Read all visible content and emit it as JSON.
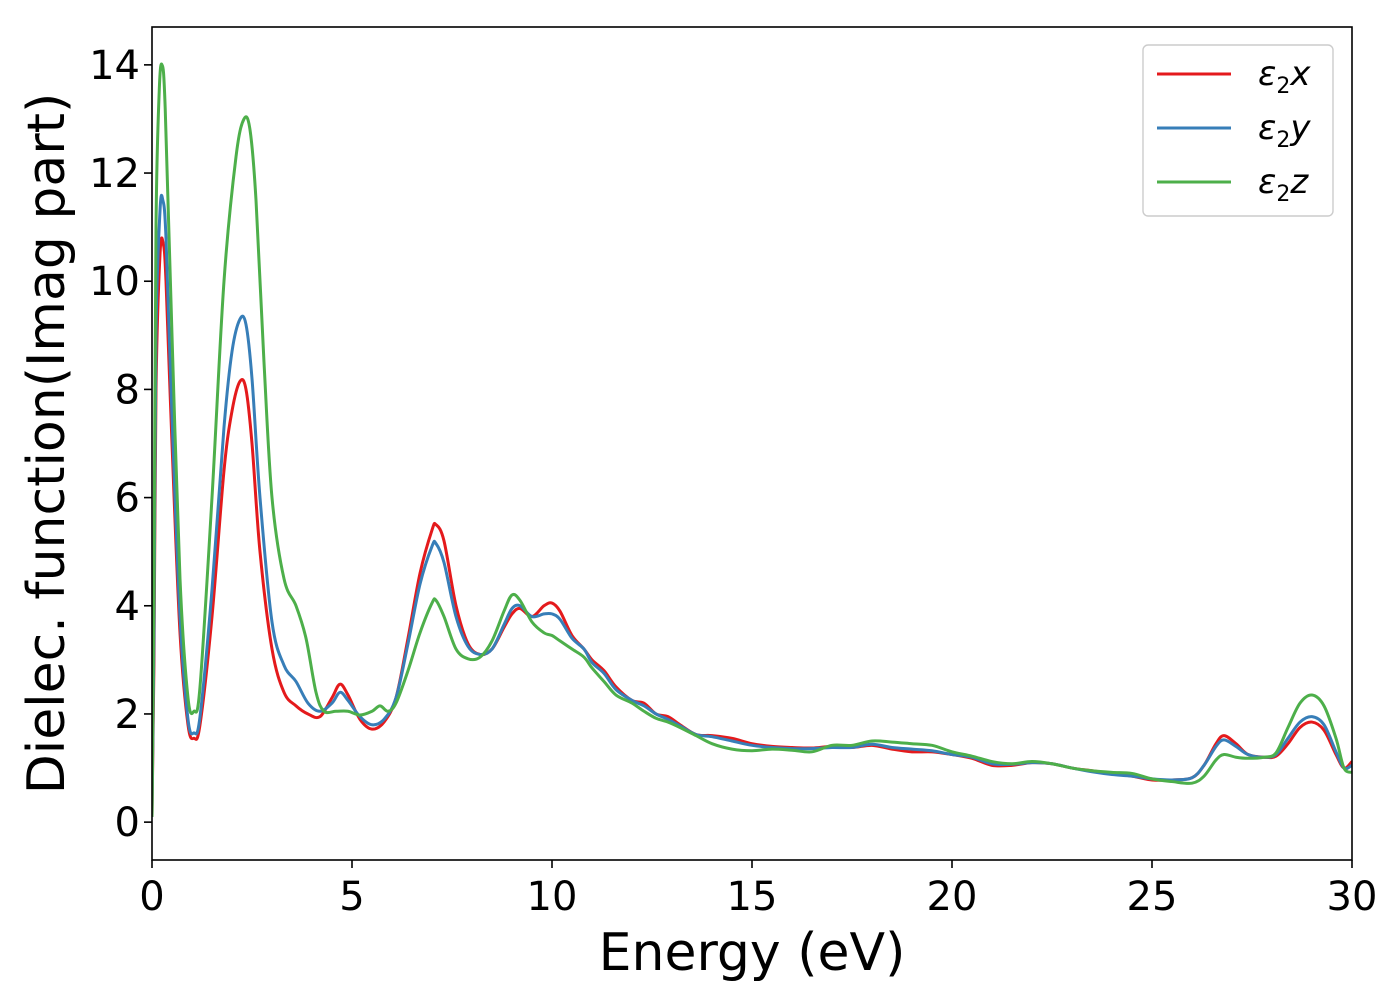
{
  "chart_data": {
    "type": "line",
    "title": "",
    "xlabel": "Energy (eV)",
    "ylabel": "Dielec. function(Imag part)",
    "xlim": [
      0,
      30
    ],
    "ylim": [
      -0.7,
      14.7
    ],
    "xticks": [
      0,
      5,
      10,
      15,
      20,
      25,
      30
    ],
    "yticks": [
      0,
      2,
      4,
      6,
      8,
      10,
      12,
      14
    ],
    "grid": false,
    "legend_position": "top-right",
    "series": [
      {
        "name": "ε2x",
        "legend_base": "ε",
        "legend_sub": "2",
        "legend_var": "x",
        "color": "#e41a1c",
        "points": [
          [
            0,
            0.1
          ],
          [
            0.05,
            3
          ],
          [
            0.1,
            8
          ],
          [
            0.2,
            10.5
          ],
          [
            0.28,
            10.7
          ],
          [
            0.35,
            10
          ],
          [
            0.5,
            7
          ],
          [
            0.7,
            3.5
          ],
          [
            0.9,
            1.8
          ],
          [
            1.05,
            1.55
          ],
          [
            1.2,
            1.8
          ],
          [
            1.5,
            3.8
          ],
          [
            1.8,
            6.5
          ],
          [
            2.0,
            7.6
          ],
          [
            2.2,
            8.15
          ],
          [
            2.35,
            8.0
          ],
          [
            2.5,
            7.0
          ],
          [
            2.7,
            5.0
          ],
          [
            3.0,
            3.2
          ],
          [
            3.3,
            2.4
          ],
          [
            3.6,
            2.15
          ],
          [
            3.9,
            2.0
          ],
          [
            4.2,
            1.95
          ],
          [
            4.5,
            2.3
          ],
          [
            4.7,
            2.55
          ],
          [
            4.9,
            2.35
          ],
          [
            5.2,
            1.9
          ],
          [
            5.5,
            1.72
          ],
          [
            5.8,
            1.85
          ],
          [
            6.1,
            2.3
          ],
          [
            6.4,
            3.4
          ],
          [
            6.7,
            4.6
          ],
          [
            7.0,
            5.4
          ],
          [
            7.1,
            5.5
          ],
          [
            7.3,
            5.2
          ],
          [
            7.6,
            4.0
          ],
          [
            7.9,
            3.3
          ],
          [
            8.2,
            3.1
          ],
          [
            8.5,
            3.2
          ],
          [
            8.8,
            3.6
          ],
          [
            9.0,
            3.85
          ],
          [
            9.2,
            3.95
          ],
          [
            9.5,
            3.8
          ],
          [
            9.8,
            4.0
          ],
          [
            10.0,
            4.05
          ],
          [
            10.2,
            3.9
          ],
          [
            10.5,
            3.45
          ],
          [
            10.8,
            3.2
          ],
          [
            11.0,
            3.0
          ],
          [
            11.3,
            2.8
          ],
          [
            11.6,
            2.5
          ],
          [
            12.0,
            2.25
          ],
          [
            12.3,
            2.2
          ],
          [
            12.6,
            2.0
          ],
          [
            12.9,
            1.95
          ],
          [
            13.2,
            1.8
          ],
          [
            13.6,
            1.62
          ],
          [
            14.0,
            1.6
          ],
          [
            14.5,
            1.55
          ],
          [
            15.0,
            1.45
          ],
          [
            15.5,
            1.4
          ],
          [
            16.0,
            1.38
          ],
          [
            16.5,
            1.37
          ],
          [
            17.0,
            1.4
          ],
          [
            17.5,
            1.38
          ],
          [
            18.0,
            1.42
          ],
          [
            18.5,
            1.35
          ],
          [
            19.0,
            1.3
          ],
          [
            19.5,
            1.3
          ],
          [
            20.0,
            1.25
          ],
          [
            20.5,
            1.18
          ],
          [
            21.0,
            1.05
          ],
          [
            21.5,
            1.05
          ],
          [
            22.0,
            1.1
          ],
          [
            22.5,
            1.08
          ],
          [
            23.0,
            1.0
          ],
          [
            23.5,
            0.95
          ],
          [
            24.0,
            0.9
          ],
          [
            24.5,
            0.85
          ],
          [
            25.0,
            0.78
          ],
          [
            25.5,
            0.78
          ],
          [
            26.0,
            0.82
          ],
          [
            26.3,
            1.05
          ],
          [
            26.6,
            1.45
          ],
          [
            26.8,
            1.6
          ],
          [
            27.1,
            1.45
          ],
          [
            27.4,
            1.25
          ],
          [
            27.8,
            1.2
          ],
          [
            28.1,
            1.22
          ],
          [
            28.4,
            1.45
          ],
          [
            28.7,
            1.75
          ],
          [
            29.0,
            1.85
          ],
          [
            29.3,
            1.7
          ],
          [
            29.6,
            1.25
          ],
          [
            29.8,
            1.0
          ],
          [
            30.0,
            1.12
          ]
        ]
      },
      {
        "name": "ε2y",
        "legend_base": "ε",
        "legend_sub": "2",
        "legend_var": "y",
        "color": "#377eb8",
        "points": [
          [
            0,
            0.1
          ],
          [
            0.05,
            3.5
          ],
          [
            0.1,
            9
          ],
          [
            0.2,
            11.3
          ],
          [
            0.27,
            11.5
          ],
          [
            0.35,
            10.8
          ],
          [
            0.5,
            7.5
          ],
          [
            0.7,
            3.8
          ],
          [
            0.9,
            1.9
          ],
          [
            1.05,
            1.65
          ],
          [
            1.2,
            1.95
          ],
          [
            1.5,
            4.3
          ],
          [
            1.8,
            7.3
          ],
          [
            2.0,
            8.7
          ],
          [
            2.2,
            9.3
          ],
          [
            2.35,
            9.2
          ],
          [
            2.5,
            8.2
          ],
          [
            2.7,
            6.0
          ],
          [
            3.0,
            3.7
          ],
          [
            3.3,
            2.9
          ],
          [
            3.6,
            2.6
          ],
          [
            3.9,
            2.2
          ],
          [
            4.2,
            2.05
          ],
          [
            4.5,
            2.2
          ],
          [
            4.7,
            2.4
          ],
          [
            4.9,
            2.25
          ],
          [
            5.2,
            1.95
          ],
          [
            5.5,
            1.8
          ],
          [
            5.8,
            1.9
          ],
          [
            6.1,
            2.3
          ],
          [
            6.4,
            3.3
          ],
          [
            6.7,
            4.4
          ],
          [
            7.0,
            5.1
          ],
          [
            7.1,
            5.15
          ],
          [
            7.3,
            4.8
          ],
          [
            7.6,
            3.8
          ],
          [
            7.9,
            3.25
          ],
          [
            8.2,
            3.1
          ],
          [
            8.5,
            3.2
          ],
          [
            8.8,
            3.65
          ],
          [
            9.0,
            3.95
          ],
          [
            9.2,
            4.0
          ],
          [
            9.5,
            3.8
          ],
          [
            9.8,
            3.85
          ],
          [
            10.0,
            3.85
          ],
          [
            10.2,
            3.75
          ],
          [
            10.5,
            3.4
          ],
          [
            10.8,
            3.2
          ],
          [
            11.0,
            2.95
          ],
          [
            11.3,
            2.75
          ],
          [
            11.6,
            2.45
          ],
          [
            12.0,
            2.25
          ],
          [
            12.3,
            2.15
          ],
          [
            12.6,
            2.0
          ],
          [
            12.9,
            1.9
          ],
          [
            13.2,
            1.78
          ],
          [
            13.6,
            1.62
          ],
          [
            14.0,
            1.58
          ],
          [
            14.5,
            1.5
          ],
          [
            15.0,
            1.42
          ],
          [
            15.5,
            1.38
          ],
          [
            16.0,
            1.36
          ],
          [
            16.5,
            1.36
          ],
          [
            17.0,
            1.38
          ],
          [
            17.5,
            1.38
          ],
          [
            18.0,
            1.44
          ],
          [
            18.5,
            1.38
          ],
          [
            19.0,
            1.35
          ],
          [
            19.5,
            1.32
          ],
          [
            20.0,
            1.25
          ],
          [
            20.5,
            1.2
          ],
          [
            21.0,
            1.08
          ],
          [
            21.5,
            1.07
          ],
          [
            22.0,
            1.1
          ],
          [
            22.5,
            1.08
          ],
          [
            23.0,
            1.0
          ],
          [
            23.5,
            0.93
          ],
          [
            24.0,
            0.88
          ],
          [
            24.5,
            0.85
          ],
          [
            25.0,
            0.8
          ],
          [
            25.5,
            0.78
          ],
          [
            26.0,
            0.82
          ],
          [
            26.3,
            1.05
          ],
          [
            26.6,
            1.4
          ],
          [
            26.8,
            1.52
          ],
          [
            27.1,
            1.4
          ],
          [
            27.4,
            1.25
          ],
          [
            27.8,
            1.2
          ],
          [
            28.1,
            1.25
          ],
          [
            28.4,
            1.55
          ],
          [
            28.7,
            1.85
          ],
          [
            29.0,
            1.95
          ],
          [
            29.3,
            1.8
          ],
          [
            29.6,
            1.3
          ],
          [
            29.8,
            1.0
          ],
          [
            30.0,
            1.05
          ]
        ]
      },
      {
        "name": "ε2z",
        "legend_base": "ε",
        "legend_sub": "2",
        "legend_var": "z",
        "color": "#4daf4a",
        "points": [
          [
            0,
            0.1
          ],
          [
            0.05,
            4.5
          ],
          [
            0.1,
            11
          ],
          [
            0.18,
            13.5
          ],
          [
            0.25,
            14.0
          ],
          [
            0.33,
            13.2
          ],
          [
            0.5,
            9.0
          ],
          [
            0.7,
            4.5
          ],
          [
            0.9,
            2.3
          ],
          [
            1.05,
            2.05
          ],
          [
            1.2,
            2.5
          ],
          [
            1.5,
            6.0
          ],
          [
            1.8,
            10.0
          ],
          [
            2.1,
            12.3
          ],
          [
            2.3,
            13.0
          ],
          [
            2.45,
            12.8
          ],
          [
            2.6,
            11.5
          ],
          [
            2.8,
            8.5
          ],
          [
            3.0,
            6.0
          ],
          [
            3.3,
            4.5
          ],
          [
            3.6,
            4.0
          ],
          [
            3.85,
            3.4
          ],
          [
            4.1,
            2.4
          ],
          [
            4.3,
            2.05
          ],
          [
            4.6,
            2.05
          ],
          [
            4.9,
            2.05
          ],
          [
            5.2,
            1.98
          ],
          [
            5.5,
            2.05
          ],
          [
            5.7,
            2.15
          ],
          [
            5.9,
            2.05
          ],
          [
            6.1,
            2.2
          ],
          [
            6.4,
            2.8
          ],
          [
            6.7,
            3.5
          ],
          [
            7.0,
            4.05
          ],
          [
            7.1,
            4.1
          ],
          [
            7.3,
            3.8
          ],
          [
            7.6,
            3.2
          ],
          [
            7.9,
            3.02
          ],
          [
            8.2,
            3.05
          ],
          [
            8.5,
            3.35
          ],
          [
            8.8,
            3.9
          ],
          [
            9.0,
            4.2
          ],
          [
            9.2,
            4.1
          ],
          [
            9.5,
            3.7
          ],
          [
            9.8,
            3.5
          ],
          [
            10.0,
            3.45
          ],
          [
            10.2,
            3.35
          ],
          [
            10.5,
            3.2
          ],
          [
            10.8,
            3.05
          ],
          [
            11.0,
            2.85
          ],
          [
            11.3,
            2.6
          ],
          [
            11.6,
            2.35
          ],
          [
            12.0,
            2.2
          ],
          [
            12.3,
            2.05
          ],
          [
            12.6,
            1.92
          ],
          [
            12.9,
            1.85
          ],
          [
            13.2,
            1.75
          ],
          [
            13.6,
            1.6
          ],
          [
            14.0,
            1.45
          ],
          [
            14.5,
            1.35
          ],
          [
            15.0,
            1.32
          ],
          [
            15.5,
            1.35
          ],
          [
            16.0,
            1.33
          ],
          [
            16.5,
            1.3
          ],
          [
            17.0,
            1.42
          ],
          [
            17.5,
            1.42
          ],
          [
            18.0,
            1.5
          ],
          [
            18.5,
            1.48
          ],
          [
            19.0,
            1.45
          ],
          [
            19.5,
            1.42
          ],
          [
            20.0,
            1.3
          ],
          [
            20.5,
            1.22
          ],
          [
            21.0,
            1.12
          ],
          [
            21.5,
            1.08
          ],
          [
            22.0,
            1.12
          ],
          [
            22.5,
            1.08
          ],
          [
            23.0,
            1.0
          ],
          [
            23.5,
            0.95
          ],
          [
            24.0,
            0.92
          ],
          [
            24.5,
            0.9
          ],
          [
            25.0,
            0.8
          ],
          [
            25.5,
            0.75
          ],
          [
            26.0,
            0.72
          ],
          [
            26.3,
            0.85
          ],
          [
            26.6,
            1.15
          ],
          [
            26.8,
            1.25
          ],
          [
            27.1,
            1.2
          ],
          [
            27.4,
            1.18
          ],
          [
            27.8,
            1.2
          ],
          [
            28.1,
            1.28
          ],
          [
            28.4,
            1.75
          ],
          [
            28.7,
            2.2
          ],
          [
            29.0,
            2.35
          ],
          [
            29.3,
            2.15
          ],
          [
            29.6,
            1.55
          ],
          [
            29.8,
            1.0
          ],
          [
            30.0,
            0.92
          ]
        ]
      }
    ]
  }
}
